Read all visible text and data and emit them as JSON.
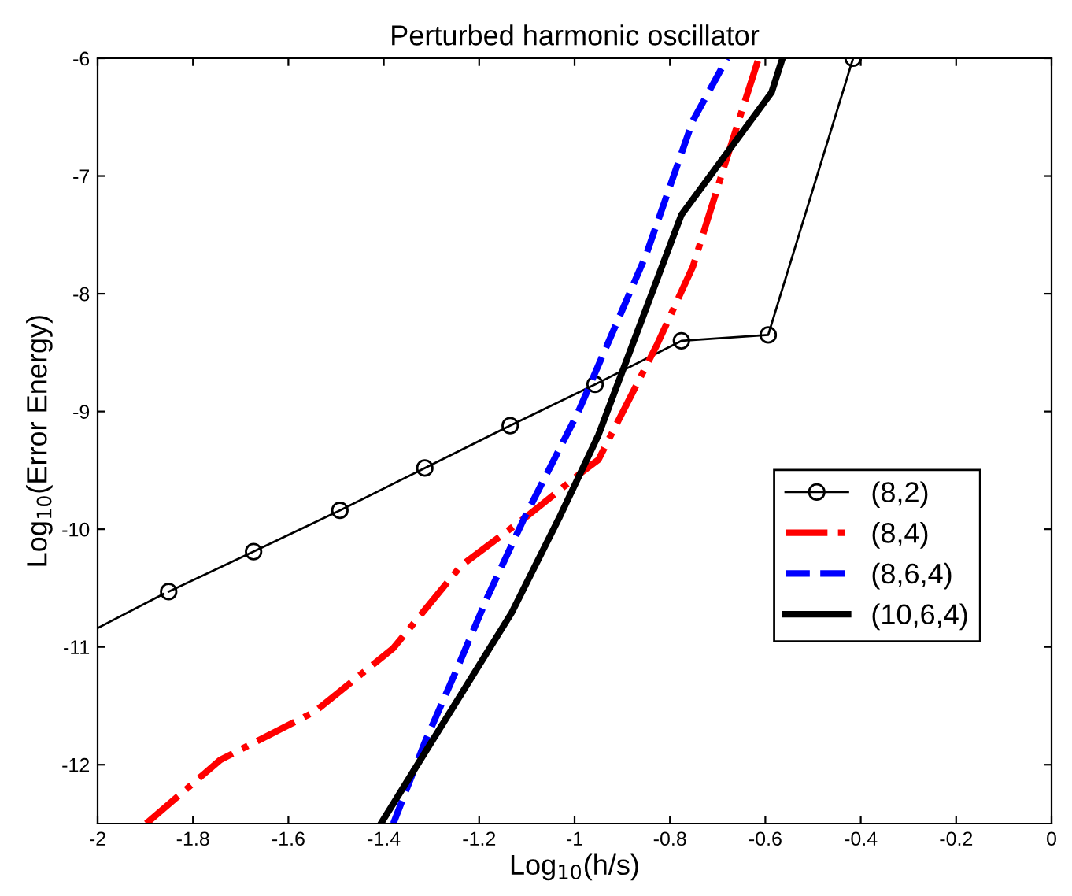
{
  "chart_data": {
    "type": "line",
    "title": "Perturbed harmonic oscillator",
    "xlabel": "Log$_{10}$(h/s)",
    "ylabel": "Log$_{10}$(Error Energy)",
    "xlim": [
      -2,
      0
    ],
    "ylim": [
      -12.5,
      -6
    ],
    "xticks": [
      -2,
      -1.8,
      -1.6,
      -1.4,
      -1.2,
      -1,
      -0.8,
      -0.6,
      -0.4,
      -0.2,
      0
    ],
    "yticks": [
      -12,
      -11,
      -10,
      -9,
      -8,
      -7,
      -6
    ],
    "legend": "right",
    "grid": false,
    "series": [
      {
        "color": "#000000",
        "marker": "none",
        "line_style": "solid",
        "x": [
          -2,
          -1.862
        ],
        "values": [
          -10.84,
          -10.55
        ]
      },
      {
        "name": "(8,2)",
        "color": "#000000",
        "marker": "circle",
        "line_style": "solid",
        "x": [
          -1.851,
          -1.673,
          -1.492,
          -1.314,
          -1.135,
          -0.957,
          -0.776,
          -0.594,
          -0.416
        ],
        "values": [
          -10.53,
          -10.19,
          -9.84,
          -9.48,
          -9.12,
          -8.77,
          -8.4,
          -8.35,
          -6
        ]
      },
      {
        "name": "(8,4)",
        "color": "#ff0000",
        "marker": "none",
        "line_style": "dashdot",
        "x": [
          -1.898,
          -1.743,
          -1.545,
          -1.38,
          -1.238,
          -1.106,
          -0.983,
          -0.95,
          -0.828,
          -0.752,
          -0.677,
          -0.614
        ],
        "values": [
          -12.5,
          -11.96,
          -11.55,
          -11.01,
          -10.31,
          -9.91,
          -9.51,
          -9.41,
          -8.44,
          -7.77,
          -6.8,
          -6
        ]
      },
      {
        "name": "(8,6,4)",
        "color": "#0000ff",
        "marker": "none",
        "line_style": "dashed",
        "x": [
          -1.38,
          -1.314,
          -1.248,
          -1.182,
          -1.106,
          -0.993,
          -0.851,
          -0.752,
          -0.68
        ],
        "values": [
          -12.5,
          -11.81,
          -11.2,
          -10.57,
          -9.91,
          -9.01,
          -7.68,
          -6.53,
          -6
        ]
      },
      {
        "name": "(10,6,4)",
        "color": "#000000",
        "marker": "none",
        "line_style": "solid",
        "x": [
          -1.406,
          -1.132,
          -1.033,
          -0.95,
          -0.776,
          -0.587,
          -0.564
        ],
        "values": [
          -12.5,
          -10.71,
          -9.91,
          -9.2,
          -7.33,
          -6.29,
          -6
        ]
      }
    ]
  }
}
